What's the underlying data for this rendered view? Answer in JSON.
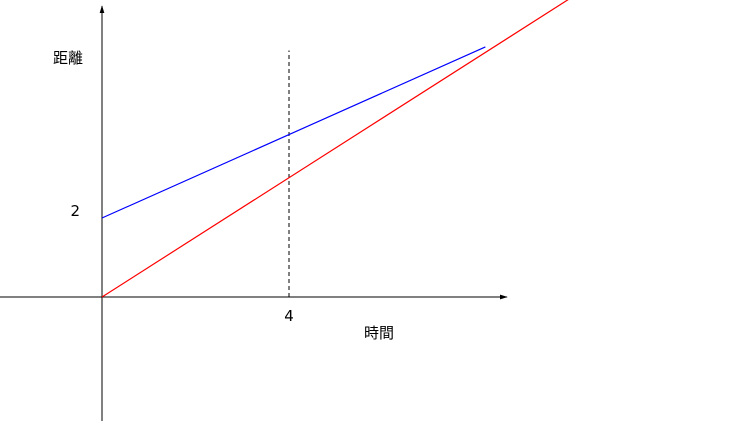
{
  "chart_data": {
    "type": "line",
    "xlabel": "時間",
    "ylabel": "距離",
    "x_ticks": [
      {
        "value": 4,
        "label": "4"
      }
    ],
    "y_ticks": [
      {
        "value": 2,
        "label": "2"
      }
    ],
    "series": [
      {
        "color": "#ff0000",
        "x": [
          0,
          10.9
        ],
        "y": [
          0,
          8.23
        ]
      },
      {
        "color": "#0000ff",
        "x": [
          0,
          8.2
        ],
        "y": [
          2,
          6.33
        ]
      }
    ],
    "reference_lines": [
      {
        "orientation": "vertical",
        "x": 4,
        "y_to": 6.24,
        "style": "dashed",
        "color": "#000000"
      }
    ],
    "grid": false,
    "legend": "none"
  }
}
